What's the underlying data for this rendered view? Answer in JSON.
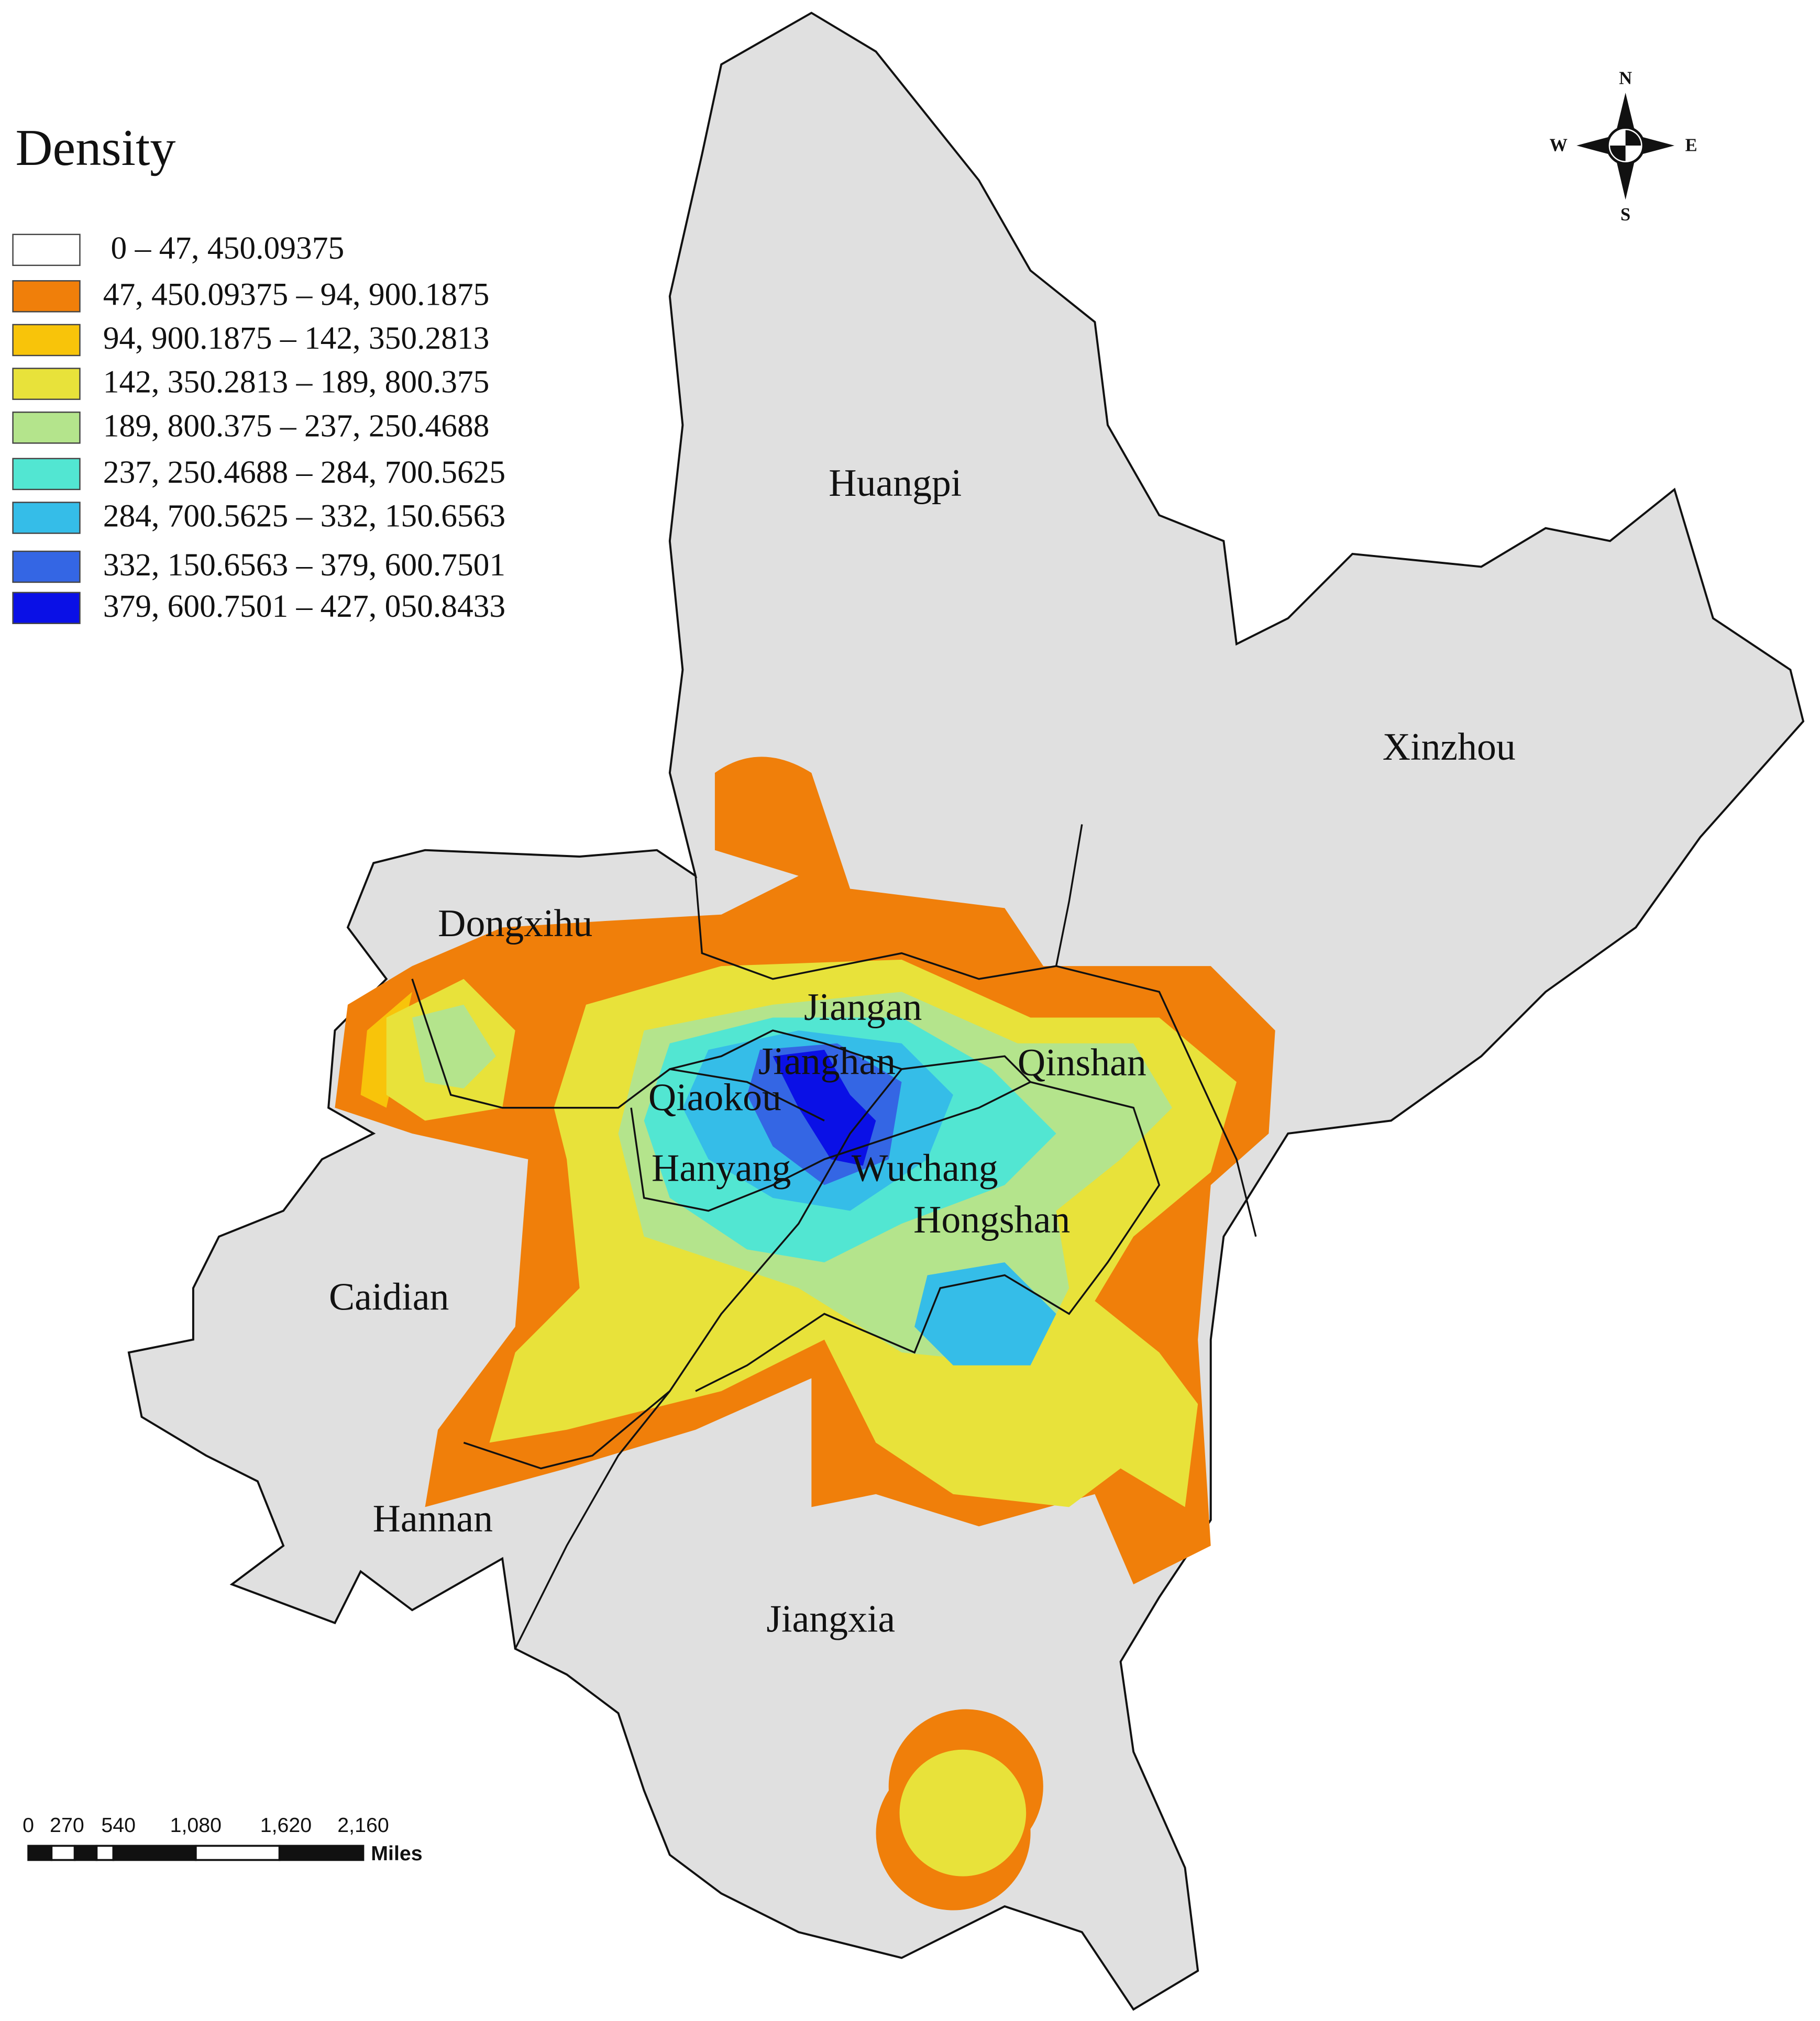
{
  "legend": {
    "title": "Density",
    "items": [
      {
        "label": "0 – 47, 450.09375",
        "color": "#ffffff"
      },
      {
        "label": "47, 450.09375 – 94, 900.1875",
        "color": "#f07f0a"
      },
      {
        "label": "94, 900.1875 – 142, 350.2813",
        "color": "#f8c40a"
      },
      {
        "label": "142, 350.2813 – 189, 800.375",
        "color": "#e8e23a"
      },
      {
        "label": "189, 800.375 – 237, 250.4688",
        "color": "#b4e48c"
      },
      {
        "label": "237, 250.4688 – 284, 700.5625",
        "color": "#52e6d2"
      },
      {
        "label": "284, 700.5625 – 332, 150.6563",
        "color": "#35bde8"
      },
      {
        "label": "332, 150.6563 – 379, 600.7501",
        "color": "#3466e4"
      },
      {
        "label": "379, 600.7501 – 427, 050.8433",
        "color": "#0a10e6"
      }
    ]
  },
  "districts": [
    "Huangpi",
    "Xinzhou",
    "Dongxihu",
    "Jiangan",
    "Jianghan",
    "Qinshan",
    "Qiaokou",
    "Hanyang",
    "Wuchang",
    "Hongshan",
    "Caidian",
    "Hannan",
    "Jiangxia"
  ],
  "compass": {
    "north": "N",
    "south": "S",
    "west": "W",
    "east": "E"
  },
  "scale_bar": {
    "ticks": [
      "0",
      "270",
      "540",
      "1,080",
      "1,620",
      "2,160"
    ],
    "unit": "Miles"
  }
}
